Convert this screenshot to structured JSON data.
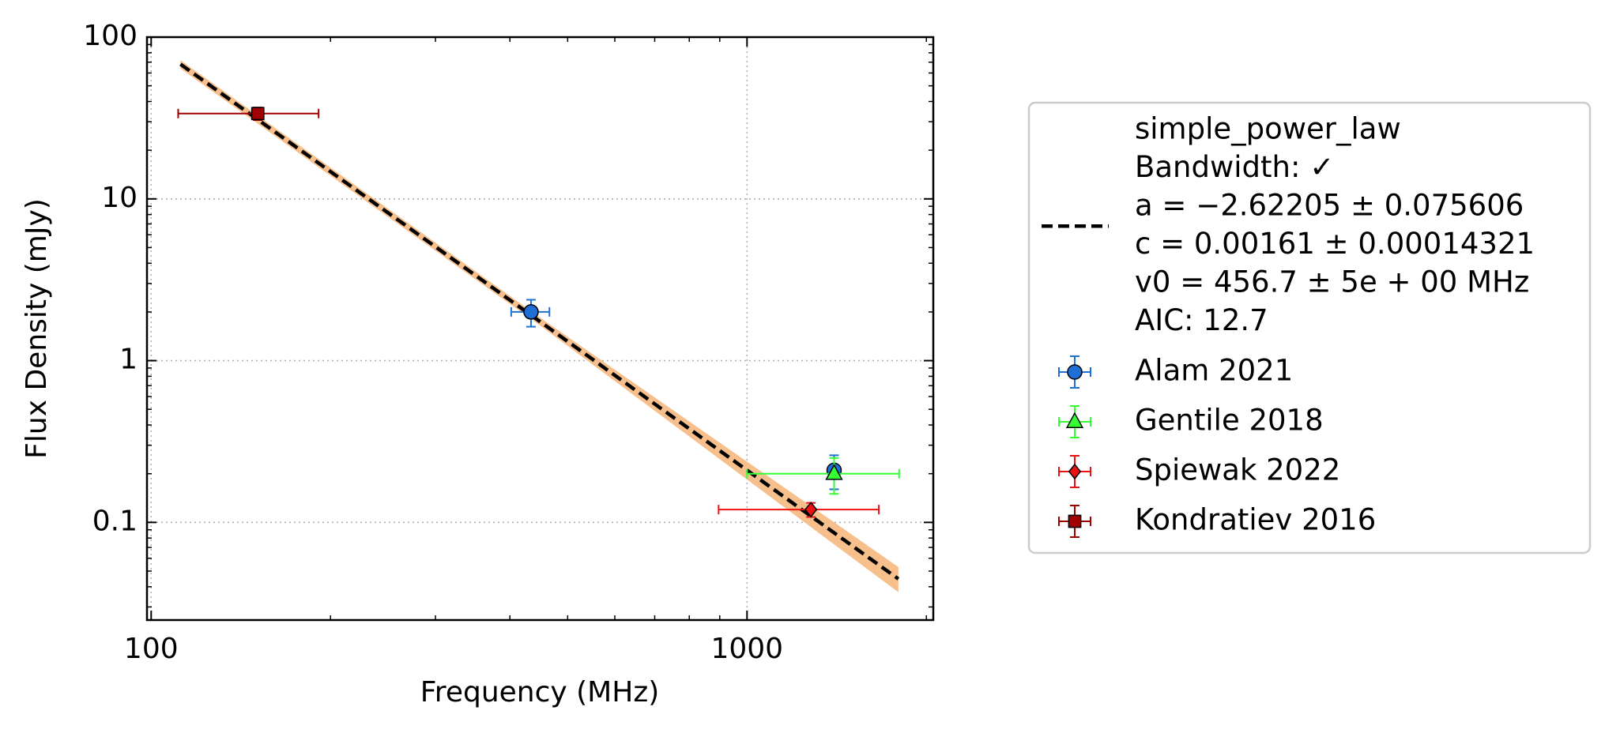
{
  "chart_data": {
    "type": "scatter",
    "xlabel": "Frequency (MHz)",
    "ylabel": "Flux Density (mJy)",
    "xscale": "log",
    "yscale": "log",
    "xlim": [
      98.4,
      2054
    ],
    "ylim": [
      0.0249,
      100
    ],
    "xticks": [
      100,
      1000
    ],
    "yticks": [
      0.1,
      1,
      10,
      100
    ],
    "xminorticks": [
      200,
      300,
      400,
      500,
      600,
      700,
      800,
      900,
      2000
    ],
    "yminorticks": [
      0.03,
      0.04,
      0.05,
      0.06,
      0.07,
      0.08,
      0.09,
      0.2,
      0.3,
      0.4,
      0.5,
      0.6,
      0.7,
      0.8,
      0.9,
      2,
      3,
      4,
      5,
      6,
      7,
      8,
      9,
      20,
      30,
      40,
      50,
      60,
      70,
      80,
      90
    ],
    "grid": true,
    "legend": "outside right",
    "fit": {
      "name": [
        "simple_power_law",
        "Bandwidth: ✓",
        "a = −2.62205 ± 0.075606",
        "c = 0.00161 ± 0.00014321",
        "v0 = 456.7 ± 5e + 00 MHz",
        "AIC: 12.7"
      ],
      "color": "#000000",
      "band_color": "#f7bf8c",
      "x": [
        112,
        456.7,
        1795
      ],
      "values": [
        68,
        1.67,
        0.0447
      ],
      "band_lower": [
        64,
        1.58,
        0.037
      ],
      "band_upper": [
        72,
        1.77,
        0.053
      ]
    },
    "series": [
      {
        "name": "Alam 2021",
        "color": "#1f6fd6",
        "marker": "circle",
        "x": [
          434,
          1400
        ],
        "values": [
          2.0,
          0.21
        ],
        "xerr": [
          32,
          0
        ],
        "yerr": [
          0.38,
          0.05
        ]
      },
      {
        "name": "Gentile 2018",
        "color": "#33ff33",
        "marker": "triangle",
        "x": [
          1400
        ],
        "values": [
          0.2
        ],
        "xerr": [
          400
        ],
        "yerr": [
          0.05
        ]
      },
      {
        "name": "Spiewak 2022",
        "color": "#ee1111",
        "marker": "diamond",
        "x": [
          1280
        ],
        "values": [
          0.12
        ],
        "xerr": [
          384
        ],
        "yerr": [
          0.012
        ]
      },
      {
        "name": "Kondratiev 2016",
        "color": "#a00000",
        "marker": "square",
        "x": [
          151
        ],
        "values": [
          33.7
        ],
        "xerr": [
          40
        ],
        "yerr": [
          3
        ]
      }
    ]
  }
}
